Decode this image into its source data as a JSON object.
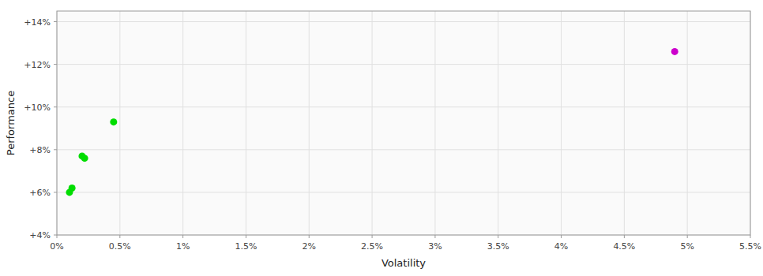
{
  "chart_data": {
    "type": "scatter",
    "xlabel": "Volatility",
    "ylabel": "Performance",
    "xlim": [
      0.0,
      0.055
    ],
    "ylim": [
      0.04,
      0.145
    ],
    "xticks": [
      {
        "value": 0.0,
        "label": "0%"
      },
      {
        "value": 0.005,
        "label": "0.5%"
      },
      {
        "value": 0.01,
        "label": "1%"
      },
      {
        "value": 0.015,
        "label": "1.5%"
      },
      {
        "value": 0.02,
        "label": "2%"
      },
      {
        "value": 0.025,
        "label": "2.5%"
      },
      {
        "value": 0.03,
        "label": "3%"
      },
      {
        "value": 0.035,
        "label": "3.5%"
      },
      {
        "value": 0.04,
        "label": "4%"
      },
      {
        "value": 0.045,
        "label": "4.5%"
      },
      {
        "value": 0.05,
        "label": "5%"
      },
      {
        "value": 0.055,
        "label": "5.5%"
      }
    ],
    "yticks": [
      {
        "value": 0.04,
        "label": "+4%"
      },
      {
        "value": 0.06,
        "label": "+6%"
      },
      {
        "value": 0.08,
        "label": "+8%"
      },
      {
        "value": 0.1,
        "label": "+10%"
      },
      {
        "value": 0.12,
        "label": "+12%"
      },
      {
        "value": 0.14,
        "label": "+14%"
      }
    ],
    "grid": true,
    "series": [
      {
        "color": "#00dd00",
        "x": [
          0.001,
          0.0012,
          0.002,
          0.0022,
          0.0045
        ],
        "values": [
          0.06,
          0.062,
          0.077,
          0.076,
          0.093
        ]
      },
      {
        "color": "#cc00cc",
        "x": [
          0.049
        ],
        "values": [
          0.126
        ]
      }
    ]
  }
}
